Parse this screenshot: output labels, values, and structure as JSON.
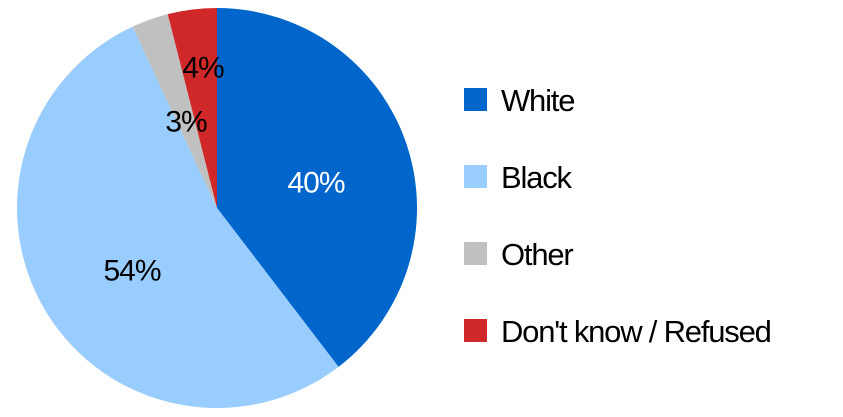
{
  "chart_data": {
    "type": "pie",
    "categories": [
      "White",
      "Black",
      "Other",
      "Don't know / Refused"
    ],
    "values": [
      40,
      54,
      3,
      4
    ],
    "value_labels": [
      "40%",
      "54%",
      "3%",
      "4%"
    ],
    "unit": "%",
    "colors": [
      "#0066cc",
      "#99ccff",
      "#c0c0c0",
      "#d02828"
    ],
    "label_colors": [
      "#ffffff",
      "#000000",
      "#000000",
      "#000000"
    ],
    "start_angle": "12 o'clock",
    "direction": "clockwise",
    "legend": {
      "placement": "right",
      "entries": [
        "White",
        "Black",
        "Other",
        "Don't know / Refused"
      ]
    }
  }
}
